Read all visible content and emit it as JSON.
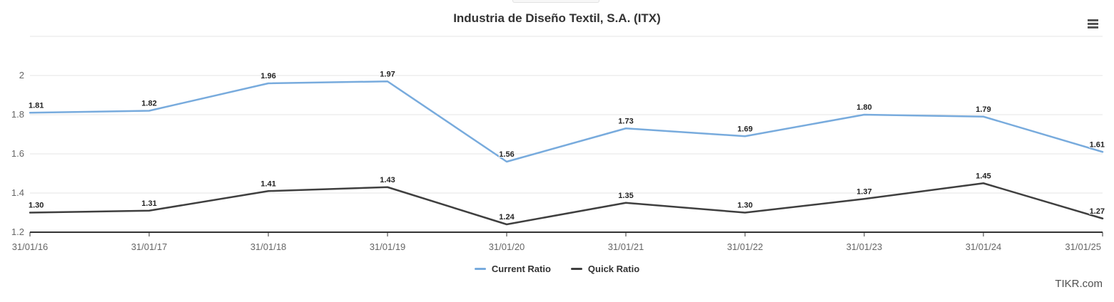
{
  "chart_data": {
    "type": "line",
    "title": "Industria de Diseño Textil, S.A. (ITX)",
    "categories": [
      "31/01/16",
      "31/01/17",
      "31/01/18",
      "31/01/19",
      "31/01/20",
      "31/01/21",
      "31/01/22",
      "31/01/23",
      "31/01/24",
      "31/01/25"
    ],
    "series": [
      {
        "name": "Current Ratio",
        "color": "#78abdd",
        "values": [
          1.81,
          1.82,
          1.96,
          1.97,
          1.56,
          1.73,
          1.69,
          1.8,
          1.79,
          1.61
        ]
      },
      {
        "name": "Quick Ratio",
        "color": "#3f3f3f",
        "values": [
          1.3,
          1.31,
          1.41,
          1.43,
          1.24,
          1.35,
          1.3,
          1.37,
          1.45,
          1.27
        ]
      }
    ],
    "yticks": [
      1.2,
      1.4,
      1.6,
      1.8,
      2
    ],
    "ylim": [
      1.2,
      2.2
    ],
    "grid": true,
    "legend_position": "bottom",
    "data_labels": true,
    "data_label_decimals": 2
  },
  "controls": {
    "context_menu_icon": "hamburger-icon"
  },
  "watermark": {
    "label": "TIKR.com"
  },
  "colors": {
    "background": "#ffffff",
    "grid_line": "#e6e6e6",
    "axis_line": "#333333",
    "tick_label": "#666666",
    "data_label": "#222222",
    "title": "#333333"
  }
}
